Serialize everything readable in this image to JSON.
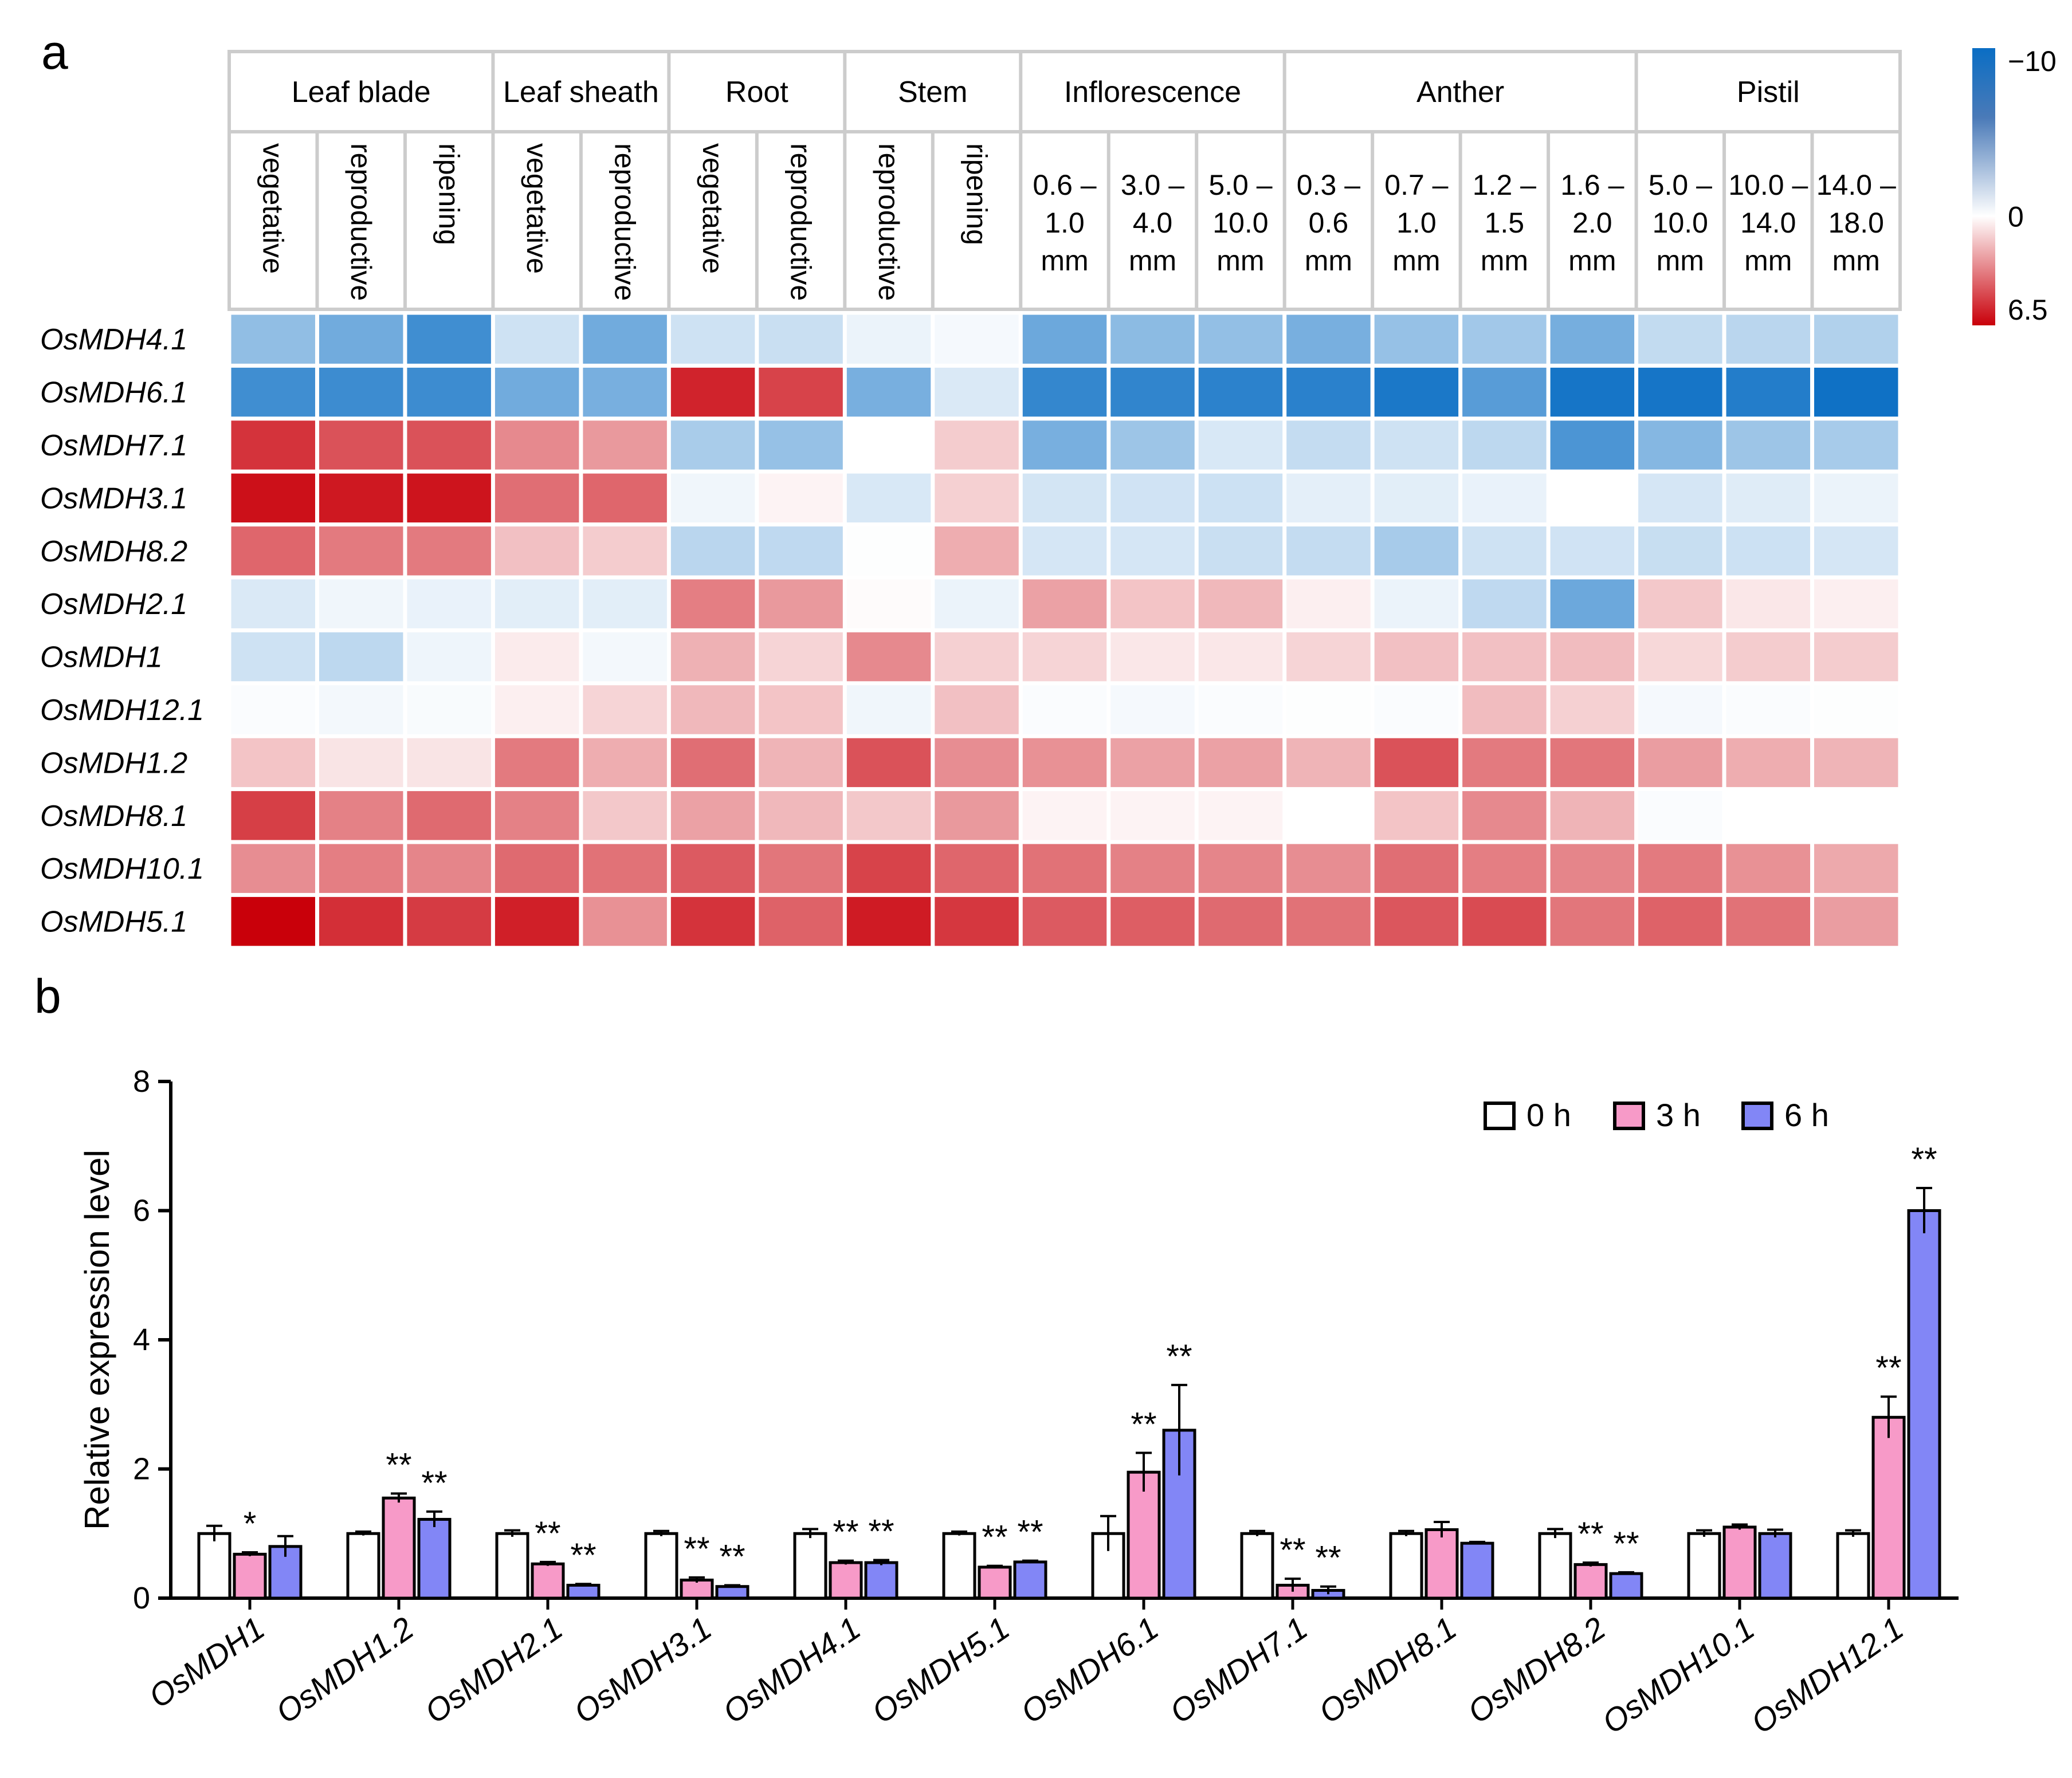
{
  "panel_labels": {
    "a": "a",
    "b": "b"
  },
  "colors": {
    "positive": "#c9000a",
    "zero": "#ffffff",
    "negative": "#0a6ec4",
    "grid_line": "#cccccc",
    "bar_0h": "#ffffff",
    "bar_3h": "#f79ac8",
    "bar_6h": "#8286f6",
    "axis": "#000000"
  },
  "chart_data": [
    {
      "type": "heatmap",
      "title": "",
      "tissues": [
        {
          "name": "Leaf blade",
          "stages": [
            "vegetative",
            "reproductive",
            "ripening"
          ]
        },
        {
          "name": "Leaf sheath",
          "stages": [
            "vegetative",
            "reproductive"
          ]
        },
        {
          "name": "Root",
          "stages": [
            "vegetative",
            "reproductive"
          ]
        },
        {
          "name": "Stem",
          "stages": [
            "reproductive",
            "ripening"
          ]
        },
        {
          "name": "Inflorescence",
          "stages": [
            "0.6 – 1.0 mm",
            "3.0 – 4.0 mm",
            "5.0 – 10.0 mm"
          ]
        },
        {
          "name": "Anther",
          "stages": [
            "0.3 – 0.6 mm",
            "0.7 – 1.0 mm",
            "1.2 – 1.5 mm",
            "1.6 – 2.0 mm"
          ]
        },
        {
          "name": "Pistil",
          "stages": [
            "5.0 – 10.0 mm",
            "10.0 – 14.0 mm",
            "14.0 – 18.0 mm"
          ]
        }
      ],
      "stage_labels": {
        "rotated": [
          "vegetative",
          "reproductive",
          "ripening",
          "vegetative",
          "reproductive",
          "vegetative",
          "reproductive",
          "reproductive",
          "ripening"
        ],
        "size_lines": [
          [
            "0.6 –",
            "1.0",
            "mm"
          ],
          [
            "3.0 –",
            "4.0",
            "mm"
          ],
          [
            "5.0 –",
            "10.0",
            "mm"
          ],
          [
            "0.3 –",
            "0.6",
            "mm"
          ],
          [
            "0.7 –",
            "1.0",
            "mm"
          ],
          [
            "1.2 –",
            "1.5",
            "mm"
          ],
          [
            "1.6 –",
            "2.0",
            "mm"
          ],
          [
            "5.0 –",
            "10.0",
            "mm"
          ],
          [
            "10.0 –",
            "14.0",
            "mm"
          ],
          [
            "14.0 –",
            "18.0",
            "mm"
          ]
        ]
      },
      "genes": [
        "OsMDH4.1",
        "OsMDH6.1",
        "OsMDH7.1",
        "OsMDH3.1",
        "OsMDH8.2",
        "OsMDH2.1",
        "OsMDH1",
        "OsMDH12.1",
        "OsMDH1.2",
        "OsMDH8.1",
        "OsMDH10.1",
        "OsMDH5.1"
      ],
      "values": [
        [
          -4.5,
          -5.8,
          -7.8,
          -2.0,
          -5.8,
          -2.0,
          -2.2,
          -0.8,
          -0.4,
          -6.0,
          -4.7,
          -4.4,
          -5.5,
          -4.3,
          -3.8,
          -5.6,
          -2.5,
          -2.8,
          -3.2
        ],
        [
          -7.8,
          -7.9,
          -7.9,
          -5.8,
          -5.5,
          5.6,
          4.8,
          -5.5,
          -1.5,
          -8.3,
          -8.4,
          -8.6,
          -8.7,
          -9.3,
          -6.8,
          -9.5,
          -9.5,
          -9.0,
          -9.8
        ],
        [
          5.2,
          4.4,
          4.4,
          3.0,
          2.6,
          -3.5,
          -4.3,
          0.0,
          1.3,
          -5.5,
          -4.0,
          -1.6,
          -2.4,
          -2.0,
          -2.7,
          -7.3,
          -5.0,
          -4.0,
          -3.6
        ],
        [
          6.1,
          5.9,
          6.0,
          3.7,
          3.9,
          -0.6,
          0.3,
          -1.6,
          1.2,
          -1.8,
          -1.9,
          -2.1,
          -1.1,
          -1.2,
          -0.9,
          0.0,
          -1.7,
          -1.3,
          -0.8
        ],
        [
          3.9,
          3.4,
          3.4,
          1.6,
          1.3,
          -2.8,
          -2.6,
          -0.1,
          2.1,
          -1.7,
          -1.7,
          -2.2,
          -2.4,
          -3.6,
          -2.0,
          -1.9,
          -2.3,
          -2.1,
          -1.7
        ],
        [
          -1.5,
          -0.6,
          -0.9,
          -1.2,
          -1.2,
          3.3,
          2.6,
          0.1,
          -0.8,
          2.4,
          1.5,
          1.8,
          0.4,
          -0.8,
          -2.6,
          -6.0,
          1.4,
          0.6,
          0.4
        ],
        [
          -2.0,
          -2.7,
          -0.7,
          0.5,
          -0.5,
          2.0,
          1.1,
          3.0,
          1.2,
          1.1,
          0.6,
          0.6,
          1.1,
          1.6,
          1.6,
          1.7,
          1.0,
          1.3,
          1.3
        ],
        [
          -0.2,
          -0.5,
          -0.3,
          0.4,
          1.1,
          1.8,
          1.5,
          -0.6,
          1.6,
          -0.2,
          -0.4,
          -0.2,
          -0.1,
          -0.2,
          1.7,
          1.2,
          -0.4,
          -0.2,
          -0.1
        ],
        [
          1.5,
          0.7,
          0.7,
          3.4,
          2.1,
          3.7,
          1.9,
          4.4,
          2.9,
          2.8,
          2.4,
          2.4,
          1.9,
          4.4,
          3.4,
          3.5,
          2.5,
          2.1,
          1.9
        ],
        [
          4.9,
          3.2,
          3.8,
          3.2,
          1.4,
          2.4,
          1.8,
          1.4,
          2.6,
          0.3,
          0.3,
          0.3,
          0.0,
          1.5,
          3.0,
          1.9,
          -0.2,
          0.0,
          0.0
        ],
        [
          2.9,
          3.3,
          3.1,
          3.8,
          3.6,
          4.2,
          3.5,
          4.8,
          3.9,
          3.6,
          3.2,
          3.1,
          2.9,
          3.7,
          3.3,
          3.1,
          3.4,
          2.8,
          2.2
        ],
        [
          6.5,
          5.3,
          5.0,
          5.7,
          2.8,
          5.2,
          4.0,
          5.8,
          5.1,
          4.2,
          4.1,
          3.8,
          3.6,
          4.3,
          4.6,
          3.5,
          4.0,
          3.6,
          2.5
        ]
      ],
      "color_scale": {
        "min": -10,
        "max": 6.5,
        "ticks": [
          "−10",
          "0",
          "6.5"
        ]
      }
    },
    {
      "type": "bar",
      "title": "",
      "xlabel": "",
      "ylabel": "Relative expression level",
      "ylim": [
        0,
        8
      ],
      "yticks": [
        0,
        2,
        4,
        6,
        8
      ],
      "legend_position": "top-right",
      "categories": [
        "OsMDH1",
        "OsMDH1.2",
        "OsMDH2.1",
        "OsMDH3.1",
        "OsMDH4.1",
        "OsMDH5.1",
        "OsMDH6.1",
        "OsMDH7.1",
        "OsMDH8.1",
        "OsMDH8.2",
        "OsMDH10.1",
        "OsMDH12.1"
      ],
      "series": [
        {
          "name": "0 h",
          "values": [
            1.0,
            1.0,
            1.0,
            1.0,
            1.0,
            1.0,
            1.0,
            1.0,
            1.0,
            1.0,
            1.0,
            1.0
          ],
          "errors": [
            0.12,
            0.03,
            0.05,
            0.04,
            0.07,
            0.03,
            0.27,
            0.04,
            0.04,
            0.07,
            0.05,
            0.05
          ],
          "significance": [
            "",
            "",
            "",
            "",
            "",
            "",
            "",
            "",
            "",
            "",
            "",
            ""
          ]
        },
        {
          "name": "3 h",
          "values": [
            0.68,
            1.55,
            0.53,
            0.28,
            0.55,
            0.48,
            1.95,
            0.2,
            1.06,
            0.52,
            1.1,
            2.8
          ],
          "errors": [
            0.03,
            0.07,
            0.03,
            0.04,
            0.03,
            0.02,
            0.3,
            0.1,
            0.12,
            0.03,
            0.04,
            0.32
          ],
          "significance": [
            "*",
            "**",
            "**",
            "**",
            "**",
            "**",
            "**",
            "**",
            "",
            "**",
            "",
            "**"
          ]
        },
        {
          "name": "6 h",
          "values": [
            0.8,
            1.22,
            0.2,
            0.18,
            0.55,
            0.56,
            2.6,
            0.12,
            0.85,
            0.38,
            1.0,
            6.0
          ],
          "errors": [
            0.16,
            0.12,
            0.02,
            0.02,
            0.04,
            0.02,
            0.7,
            0.06,
            0.02,
            0.02,
            0.06,
            0.35
          ],
          "significance": [
            "",
            "**",
            "**",
            "**",
            "**",
            "**",
            "**",
            "**",
            "",
            "**",
            "",
            "**"
          ]
        }
      ]
    }
  ]
}
